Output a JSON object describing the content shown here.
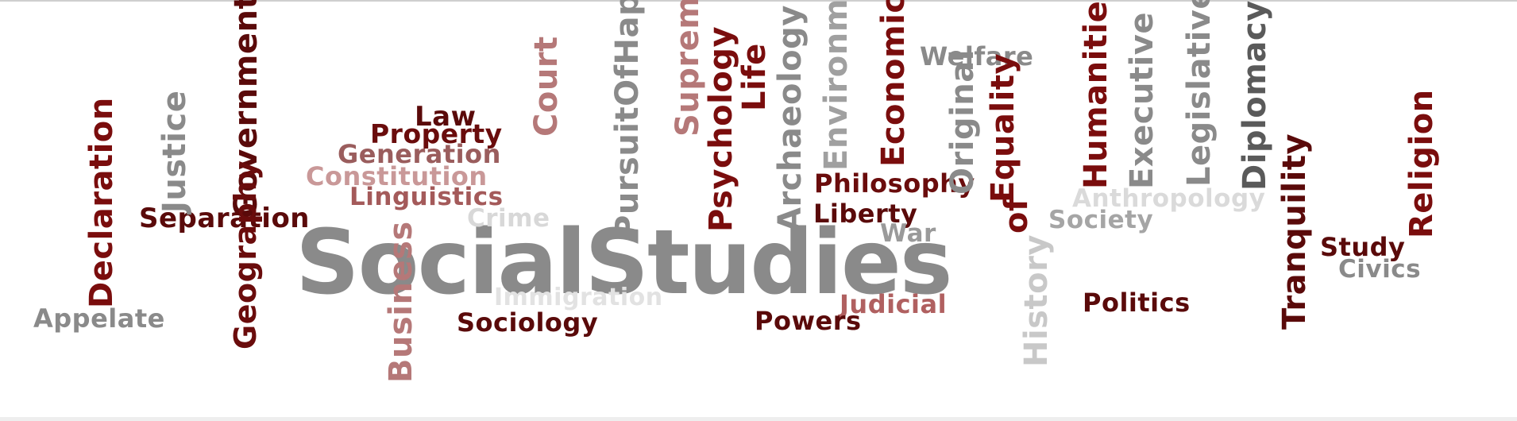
{
  "colors": {
    "gray": "#8a8a8a",
    "light_gray": "#cfcfcf",
    "dark_red": "#7a0d0d",
    "maroon": "#5a0a0a",
    "rose": "#b57878"
  },
  "words": [
    "SocialStudies",
    "Separation",
    "Law",
    "Property",
    "Generation",
    "Constitution",
    "Linguistics",
    "Crime",
    "Court",
    "PursuitOfHappiness",
    "Supreme",
    "Psychology",
    "Life",
    "Archaeology",
    "Environment",
    "Economics",
    "Welfare",
    "Original",
    "Equality",
    "Humanities",
    "Executive",
    "Legislative",
    "Diplomacy",
    "Philosophy",
    "Liberty",
    "of",
    "War",
    "Anthropology",
    "Society",
    "Religion",
    "Study",
    "Civics",
    "Tranquility",
    "Politics",
    "Judicial",
    "History",
    "Powers",
    "Sociology",
    "Immigration",
    "Business",
    "Appelate",
    "Geography",
    "Government",
    "Justice",
    "Declaration"
  ]
}
